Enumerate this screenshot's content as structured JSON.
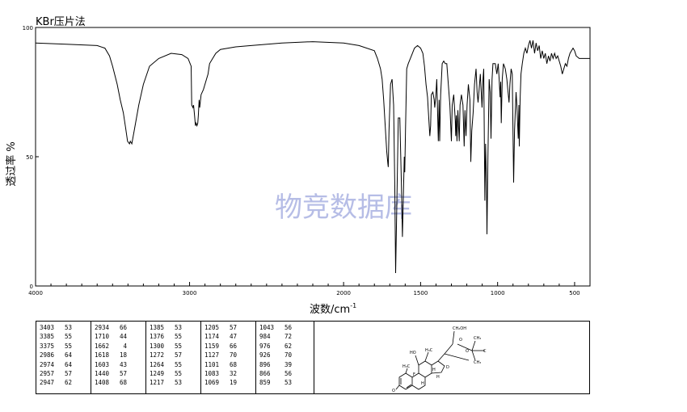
{
  "chart_data": {
    "type": "line",
    "title": "KBr压片法",
    "xlabel": "波数/cm",
    "xlabel_superscript": "-1",
    "ylabel": "透过率 %",
    "xlim": [
      4000,
      400
    ],
    "ylim": [
      0,
      100
    ],
    "x_ticks": [
      "4000",
      "3000",
      "2000",
      "1500",
      "1000",
      "500"
    ],
    "y_ticks": [
      "0",
      "50",
      "100"
    ],
    "x_minor_ticks_every": 100,
    "grid": false,
    "legend": "none",
    "watermark": "物竞数据库",
    "line_color": "#000000",
    "series": [
      {
        "points": [
          [
            4000,
            94
          ],
          [
            3800,
            93.5
          ],
          [
            3600,
            93
          ],
          [
            3550,
            92
          ],
          [
            3520,
            89
          ],
          [
            3500,
            85
          ],
          [
            3470,
            78
          ],
          [
            3450,
            72
          ],
          [
            3430,
            67
          ],
          [
            3415,
            61
          ],
          [
            3403,
            56
          ],
          [
            3390,
            55
          ],
          [
            3385,
            56
          ],
          [
            3375,
            55
          ],
          [
            3360,
            60
          ],
          [
            3330,
            70
          ],
          [
            3300,
            78
          ],
          [
            3260,
            85
          ],
          [
            3200,
            88
          ],
          [
            3120,
            90
          ],
          [
            3050,
            89.5
          ],
          [
            3010,
            88
          ],
          [
            2990,
            85
          ],
          [
            2986,
            70
          ],
          [
            2978,
            69
          ],
          [
            2974,
            70
          ],
          [
            2968,
            66
          ],
          [
            2962,
            62
          ],
          [
            2957,
            63
          ],
          [
            2952,
            62
          ],
          [
            2947,
            63
          ],
          [
            2943,
            66
          ],
          [
            2938,
            72
          ],
          [
            2934,
            69
          ],
          [
            2925,
            74
          ],
          [
            2910,
            76
          ],
          [
            2900,
            78
          ],
          [
            2890,
            80
          ],
          [
            2880,
            82
          ],
          [
            2870,
            86
          ],
          [
            2850,
            88
          ],
          [
            2830,
            90
          ],
          [
            2800,
            91.5
          ],
          [
            2700,
            92.5
          ],
          [
            2600,
            93
          ],
          [
            2400,
            94
          ],
          [
            2200,
            94.5
          ],
          [
            2000,
            94
          ],
          [
            1900,
            93
          ],
          [
            1800,
            91
          ],
          [
            1780,
            88
          ],
          [
            1760,
            84
          ],
          [
            1750,
            80
          ],
          [
            1740,
            72
          ],
          [
            1730,
            62
          ],
          [
            1720,
            52
          ],
          [
            1712,
            47
          ],
          [
            1710,
            46
          ],
          [
            1705,
            60
          ],
          [
            1695,
            78
          ],
          [
            1685,
            80
          ],
          [
            1675,
            70
          ],
          [
            1668,
            40
          ],
          [
            1662,
            5
          ],
          [
            1655,
            30
          ],
          [
            1645,
            65
          ],
          [
            1635,
            65
          ],
          [
            1625,
            40
          ],
          [
            1618,
            19
          ],
          [
            1612,
            34
          ],
          [
            1606,
            50
          ],
          [
            1603,
            44
          ],
          [
            1598,
            60
          ],
          [
            1590,
            84
          ],
          [
            1580,
            86
          ],
          [
            1560,
            89
          ],
          [
            1540,
            92
          ],
          [
            1520,
            93
          ],
          [
            1500,
            92
          ],
          [
            1485,
            90
          ],
          [
            1475,
            85
          ],
          [
            1465,
            78
          ],
          [
            1455,
            73
          ],
          [
            1450,
            68
          ],
          [
            1440,
            58
          ],
          [
            1435,
            62
          ],
          [
            1430,
            74
          ],
          [
            1420,
            75
          ],
          [
            1412,
            72
          ],
          [
            1408,
            69
          ],
          [
            1402,
            73
          ],
          [
            1395,
            80
          ],
          [
            1385,
            56
          ],
          [
            1380,
            72
          ],
          [
            1376,
            56
          ],
          [
            1370,
            74
          ],
          [
            1360,
            86
          ],
          [
            1350,
            87
          ],
          [
            1340,
            86
          ],
          [
            1330,
            86
          ],
          [
            1320,
            78
          ],
          [
            1310,
            70
          ],
          [
            1300,
            56
          ],
          [
            1295,
            70
          ],
          [
            1285,
            74
          ],
          [
            1275,
            64
          ],
          [
            1272,
            58
          ],
          [
            1268,
            66
          ],
          [
            1264,
            56
          ],
          [
            1258,
            68
          ],
          [
            1249,
            56
          ],
          [
            1244,
            70
          ],
          [
            1235,
            74
          ],
          [
            1225,
            70
          ],
          [
            1217,
            54
          ],
          [
            1212,
            68
          ],
          [
            1205,
            58
          ],
          [
            1198,
            70
          ],
          [
            1190,
            78
          ],
          [
            1180,
            72
          ],
          [
            1174,
            48
          ],
          [
            1168,
            60
          ],
          [
            1159,
            67
          ],
          [
            1150,
            78
          ],
          [
            1140,
            84
          ],
          [
            1133,
            75
          ],
          [
            1127,
            71
          ],
          [
            1120,
            76
          ],
          [
            1112,
            82
          ],
          [
            1101,
            69
          ],
          [
            1095,
            80
          ],
          [
            1090,
            84
          ],
          [
            1083,
            33
          ],
          [
            1078,
            55
          ],
          [
            1072,
            40
          ],
          [
            1069,
            20
          ],
          [
            1063,
            50
          ],
          [
            1055,
            80
          ],
          [
            1048,
            75
          ],
          [
            1043,
            57
          ],
          [
            1036,
            80
          ],
          [
            1030,
            86
          ],
          [
            1015,
            86
          ],
          [
            1005,
            82
          ],
          [
            996,
            86
          ],
          [
            990,
            80
          ],
          [
            984,
            73
          ],
          [
            980,
            79
          ],
          [
            976,
            63
          ],
          [
            970,
            80
          ],
          [
            962,
            86
          ],
          [
            950,
            84
          ],
          [
            940,
            80
          ],
          [
            932,
            75
          ],
          [
            926,
            71
          ],
          [
            920,
            78
          ],
          [
            912,
            84
          ],
          [
            905,
            82
          ],
          [
            896,
            40
          ],
          [
            890,
            60
          ],
          [
            880,
            75
          ],
          [
            875,
            70
          ],
          [
            866,
            57
          ],
          [
            862,
            70
          ],
          [
            859,
            54
          ],
          [
            854,
            72
          ],
          [
            848,
            82
          ],
          [
            840,
            86
          ],
          [
            830,
            90
          ],
          [
            820,
            92
          ],
          [
            810,
            90
          ],
          [
            800,
            93
          ],
          [
            790,
            95
          ],
          [
            780,
            92
          ],
          [
            770,
            95
          ],
          [
            760,
            90
          ],
          [
            750,
            94
          ],
          [
            740,
            91
          ],
          [
            730,
            93
          ],
          [
            720,
            88
          ],
          [
            710,
            91
          ],
          [
            700,
            88
          ],
          [
            690,
            90
          ],
          [
            680,
            86
          ],
          [
            670,
            89
          ],
          [
            660,
            87
          ],
          [
            650,
            90
          ],
          [
            640,
            88
          ],
          [
            630,
            90
          ],
          [
            620,
            88
          ],
          [
            610,
            89
          ],
          [
            600,
            87
          ],
          [
            590,
            85
          ],
          [
            580,
            82
          ],
          [
            570,
            84
          ],
          [
            560,
            86
          ],
          [
            550,
            85
          ],
          [
            540,
            88
          ],
          [
            530,
            90
          ],
          [
            520,
            91
          ],
          [
            510,
            92
          ],
          [
            500,
            91
          ],
          [
            490,
            89
          ],
          [
            470,
            88
          ],
          [
            450,
            88
          ],
          [
            430,
            88
          ],
          [
            400,
            88
          ]
        ]
      }
    ]
  },
  "peak_table": {
    "columns": [
      [
        [
          "3403",
          "53"
        ],
        [
          "3385",
          "55"
        ],
        [
          "3375",
          "55"
        ],
        [
          "2986",
          "64"
        ],
        [
          "2974",
          "64"
        ],
        [
          "2957",
          "57"
        ],
        [
          "2947",
          "62"
        ]
      ],
      [
        [
          "2934",
          "66"
        ],
        [
          "1710",
          "44"
        ],
        [
          "1662",
          "4"
        ],
        [
          "1618",
          "18"
        ],
        [
          "1603",
          "43"
        ],
        [
          "1440",
          "57"
        ],
        [
          "1408",
          "68"
        ]
      ],
      [
        [
          "1385",
          "53"
        ],
        [
          "1376",
          "55"
        ],
        [
          "1300",
          "55"
        ],
        [
          "1272",
          "57"
        ],
        [
          "1264",
          "55"
        ],
        [
          "1249",
          "55"
        ],
        [
          "1217",
          "53"
        ]
      ],
      [
        [
          "1205",
          "57"
        ],
        [
          "1174",
          "47"
        ],
        [
          "1159",
          "66"
        ],
        [
          "1127",
          "70"
        ],
        [
          "1101",
          "68"
        ],
        [
          "1083",
          "32"
        ],
        [
          "1069",
          "19"
        ]
      ],
      [
        [
          "1043",
          "56"
        ],
        [
          "984",
          "72"
        ],
        [
          "976",
          "62"
        ],
        [
          "926",
          "70"
        ],
        [
          "896",
          "39"
        ],
        [
          "866",
          "56"
        ],
        [
          "859",
          "53"
        ]
      ]
    ]
  },
  "structure": {
    "labels": {
      "ch2oh": "CH₂OH",
      "o_ketone": "O",
      "ch3": "CH₃",
      "c_label": "C",
      "o_ring": "O",
      "ch3b": "CH₃",
      "ho": "HO",
      "h3c_a": "H₃C",
      "h3c_b": "H₃C",
      "h_a": "H",
      "h_b": "H",
      "h_c": "H",
      "f": "F",
      "d": "D",
      "o_bottom": "O"
    }
  }
}
